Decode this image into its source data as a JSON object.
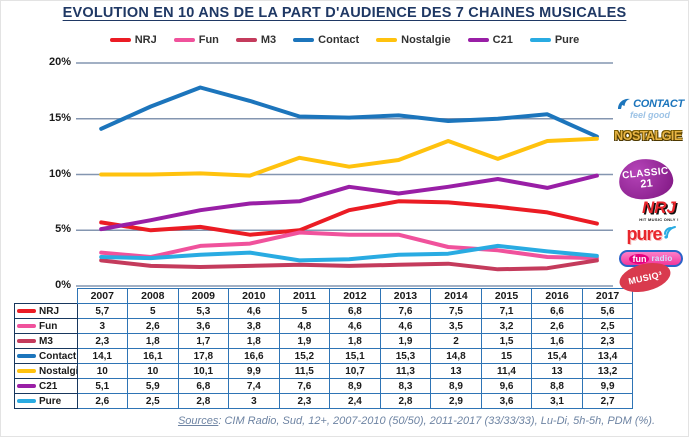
{
  "title": "EVOLUTION EN 10 ANS DE LA PART D'AUDIENCE DES 7 CHAINES MUSICALES",
  "colors": {
    "title": "#1F3864",
    "gridline": "#8496B0",
    "table_border": "#2E74B5",
    "nrj": "#EB1C24",
    "fun": "#F0529C",
    "m3": "#C43B5C",
    "contact": "#1C75BC",
    "nostalgie": "#FFC20E",
    "c21": "#991FA6",
    "pure": "#29ABE2"
  },
  "chart_data": {
    "type": "line",
    "title": "EVOLUTION EN 10 ANS DE LA PART D'AUDIENCE DES 7 CHAINES MUSICALES",
    "categories": [
      "2007",
      "2008",
      "2009",
      "2010",
      "2011",
      "2012",
      "2013",
      "2014",
      "2015",
      "2016",
      "2017"
    ],
    "series": [
      {
        "name": "NRJ",
        "color": "#EB1C24",
        "values": [
          5.7,
          5,
          5.3,
          4.6,
          5,
          6.8,
          7.6,
          7.5,
          7.1,
          6.6,
          5.6
        ]
      },
      {
        "name": "Fun",
        "color": "#F0529C",
        "values": [
          3,
          2.6,
          3.6,
          3.8,
          4.8,
          4.6,
          4.6,
          3.5,
          3.2,
          2.6,
          2.5
        ]
      },
      {
        "name": "M3",
        "color": "#C43B5C",
        "values": [
          2.3,
          1.8,
          1.7,
          1.8,
          1.9,
          1.8,
          1.9,
          2,
          1.5,
          1.6,
          2.3
        ]
      },
      {
        "name": "Contact",
        "color": "#1C75BC",
        "values": [
          14.1,
          16.1,
          17.8,
          16.6,
          15.2,
          15.1,
          15.3,
          14.8,
          15,
          15.4,
          13.4
        ]
      },
      {
        "name": "Nostalgie",
        "color": "#FFC20E",
        "values": [
          10,
          10,
          10.1,
          9.9,
          11.5,
          10.7,
          11.3,
          13,
          11.4,
          13,
          13.2
        ]
      },
      {
        "name": "C21",
        "color": "#991FA6",
        "values": [
          5.1,
          5.9,
          6.8,
          7.4,
          7.6,
          8.9,
          8.3,
          8.9,
          9.6,
          8.8,
          9.9
        ]
      },
      {
        "name": "Pure",
        "color": "#29ABE2",
        "values": [
          2.6,
          2.5,
          2.8,
          3,
          2.3,
          2.4,
          2.8,
          2.9,
          3.6,
          3.1,
          2.7
        ]
      }
    ],
    "xlabel": "",
    "ylabel": "",
    "ylim": [
      0,
      20
    ],
    "yticks": [
      "20%",
      "15%",
      "10%",
      "5%",
      "0%"
    ],
    "grid": "horizontal",
    "legend_position": "top"
  },
  "table": {
    "columns": [
      "2007",
      "2008",
      "2009",
      "2010",
      "2011",
      "2012",
      "2013",
      "2014",
      "2015",
      "2016",
      "2017"
    ],
    "rows": [
      {
        "label": "NRJ",
        "color": "#EB1C24",
        "values": [
          "5,7",
          "5",
          "5,3",
          "4,6",
          "5",
          "6,8",
          "7,6",
          "7,5",
          "7,1",
          "6,6",
          "5,6"
        ]
      },
      {
        "label": "Fun",
        "color": "#F0529C",
        "values": [
          "3",
          "2,6",
          "3,6",
          "3,8",
          "4,8",
          "4,6",
          "4,6",
          "3,5",
          "3,2",
          "2,6",
          "2,5"
        ]
      },
      {
        "label": "M3",
        "color": "#C43B5C",
        "values": [
          "2,3",
          "1,8",
          "1,7",
          "1,8",
          "1,9",
          "1,8",
          "1,9",
          "2",
          "1,5",
          "1,6",
          "2,3"
        ]
      },
      {
        "label": "Contact",
        "color": "#1C75BC",
        "values": [
          "14,1",
          "16,1",
          "17,8",
          "16,6",
          "15,2",
          "15,1",
          "15,3",
          "14,8",
          "15",
          "15,4",
          "13,4"
        ]
      },
      {
        "label": "Nostalgie",
        "color": "#FFC20E",
        "values": [
          "10",
          "10",
          "10,1",
          "9,9",
          "11,5",
          "10,7",
          "11,3",
          "13",
          "11,4",
          "13",
          "13,2"
        ]
      },
      {
        "label": "C21",
        "color": "#991FA6",
        "values": [
          "5,1",
          "5,9",
          "6,8",
          "7,4",
          "7,6",
          "8,9",
          "8,3",
          "8,9",
          "9,6",
          "8,8",
          "9,9"
        ]
      },
      {
        "label": "Pure",
        "color": "#29ABE2",
        "values": [
          "2,6",
          "2,5",
          "2,8",
          "3",
          "2,3",
          "2,4",
          "2,8",
          "2,9",
          "3,6",
          "3,1",
          "2,7"
        ]
      }
    ]
  },
  "footer": {
    "sources_label": "Sources",
    "text": ": CIM Radio, Sud, 12+, 2007-2010 (50/50), 2011-2017 (33/33/33), Lu-Di, 5h-5h, PDM (%)."
  },
  "logos": {
    "contact": {
      "name": "CONTACT",
      "tagline": "feel good"
    },
    "nostalgie": {
      "name": "NOSTALGIE"
    },
    "classic21": {
      "line1": "CLASSIC",
      "line2": "21"
    },
    "nrj": {
      "name": "NRJ",
      "tagline": "HIT MUSIC ONLY !"
    },
    "pure": {
      "name": "pure"
    },
    "funradio": {
      "name1": "fun",
      "name2": "radio"
    },
    "musiq3": {
      "name": "MUSIQ³"
    }
  }
}
